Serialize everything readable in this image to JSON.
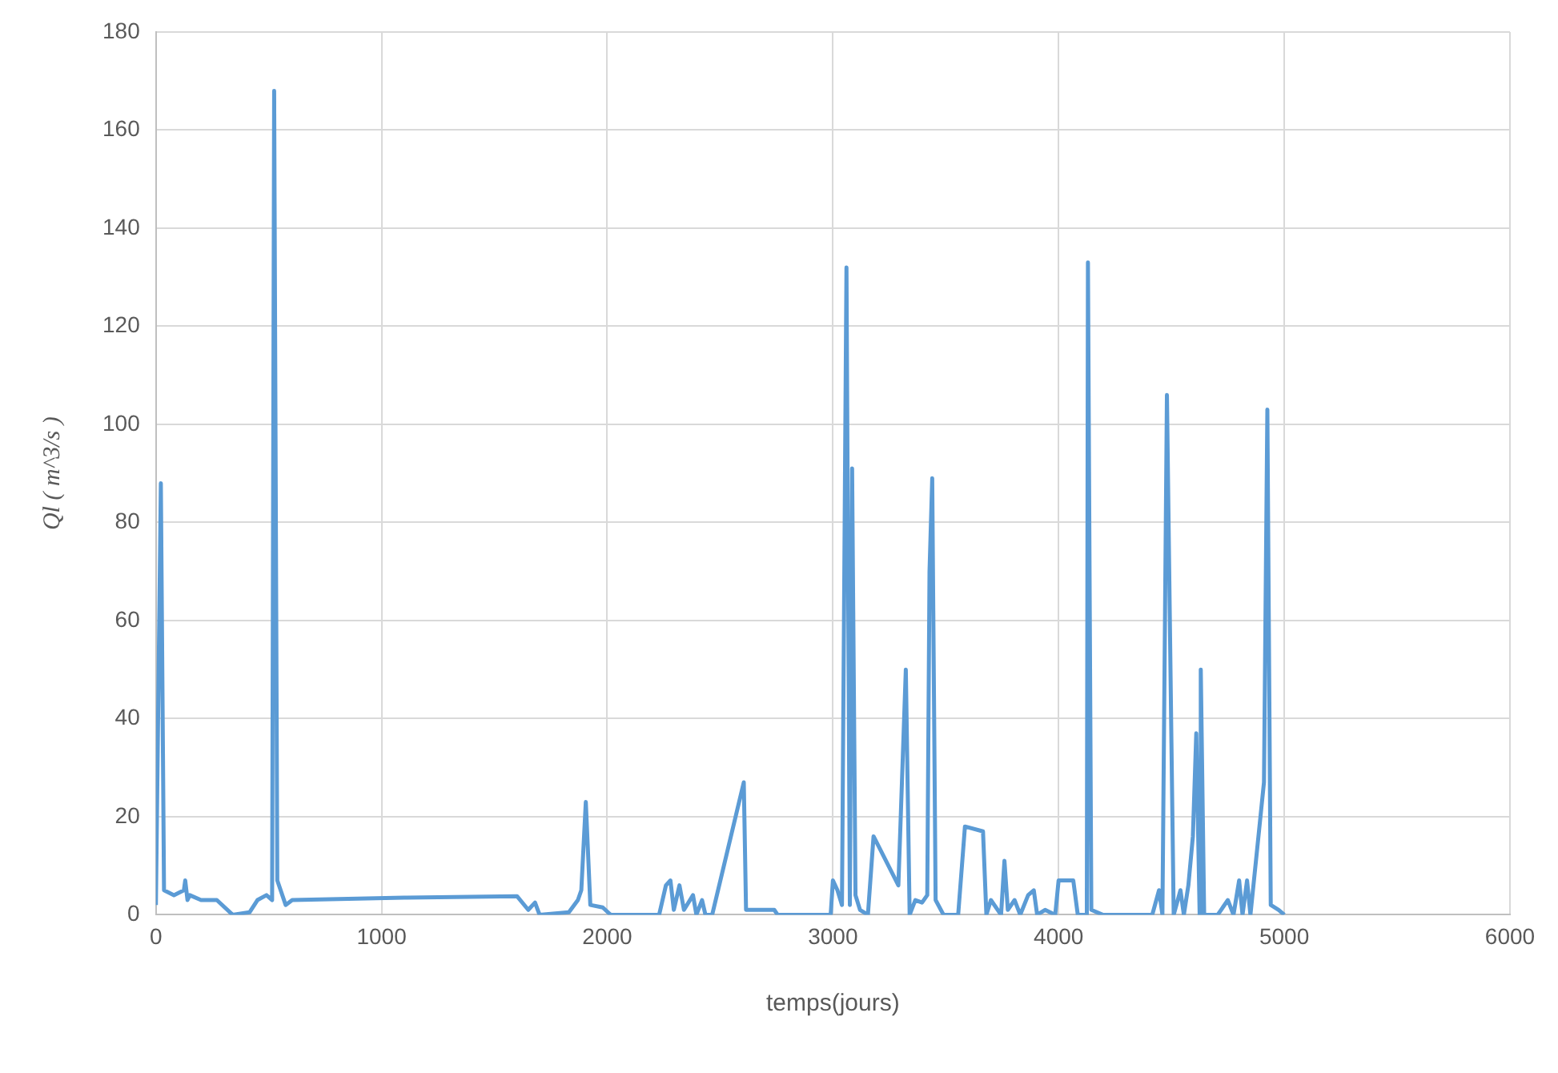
{
  "chart_data": {
    "type": "line",
    "xlabel": "temps(jours)",
    "ylabel": "Ql ( m^3/s )",
    "xlim": [
      0,
      6000
    ],
    "xticks": [
      0,
      1000,
      2000,
      3000,
      4000,
      5000,
      6000
    ],
    "ylim": [
      0,
      180
    ],
    "yticks": [
      0,
      20,
      40,
      60,
      80,
      100,
      120,
      140,
      160,
      180
    ],
    "grid": true,
    "legend": false,
    "marker": "none",
    "line_style": "solid",
    "series": [
      {
        "color": "#5b9bd5",
        "x": [
          0,
          22,
          36,
          80,
          124,
          130,
          140,
          150,
          200,
          270,
          340,
          415,
          450,
          490,
          515,
          524,
          538,
          575,
          604,
          1100,
          1600,
          1650,
          1680,
          1700,
          1830,
          1870,
          1885,
          1905,
          1925,
          1980,
          2015,
          2230,
          2260,
          2280,
          2295,
          2320,
          2340,
          2380,
          2395,
          2420,
          2435,
          2465,
          2605,
          2615,
          2740,
          2755,
          2990,
          3000,
          3020,
          3040,
          3060,
          3075,
          3085,
          3100,
          3120,
          3155,
          3180,
          3290,
          3323,
          3340,
          3365,
          3395,
          3418,
          3428,
          3440,
          3455,
          3490,
          3555,
          3585,
          3665,
          3680,
          3700,
          3745,
          3760,
          3775,
          3805,
          3830,
          3865,
          3890,
          3905,
          3940,
          3985,
          4000,
          4065,
          4085,
          4125,
          4130,
          4145,
          4195,
          4415,
          4445,
          4460,
          4480,
          4500,
          4510,
          4540,
          4555,
          4575,
          4595,
          4610,
          4625,
          4630,
          4645,
          4705,
          4750,
          4775,
          4800,
          4815,
          4835,
          4850,
          4910,
          4925,
          4940,
          4975,
          5000
        ],
        "values": [
          2,
          88,
          5,
          4,
          5,
          7,
          3,
          4,
          3,
          3,
          0,
          0.5,
          3,
          4,
          3,
          168,
          7,
          2,
          3,
          3.5,
          3.8,
          1,
          2.5,
          0,
          0.5,
          3,
          5,
          23,
          2,
          1.5,
          0,
          0,
          6,
          7,
          1,
          6,
          1,
          4,
          0,
          3,
          0,
          0,
          27,
          1,
          1,
          0,
          0,
          7,
          5,
          2,
          132,
          2,
          91,
          4,
          1,
          0,
          16,
          6,
          50,
          0,
          3,
          2.5,
          4,
          70,
          89,
          3,
          0,
          0,
          18,
          17,
          0,
          3,
          0,
          11,
          1,
          3,
          0,
          4,
          5,
          0,
          1,
          0,
          7,
          7,
          0,
          0,
          133,
          1,
          0,
          0,
          5,
          0,
          106,
          35,
          0,
          5,
          0,
          6,
          16,
          37,
          0,
          50,
          0,
          0,
          3,
          0,
          7,
          0,
          7,
          0,
          27,
          103,
          2,
          1,
          0
        ]
      }
    ]
  }
}
